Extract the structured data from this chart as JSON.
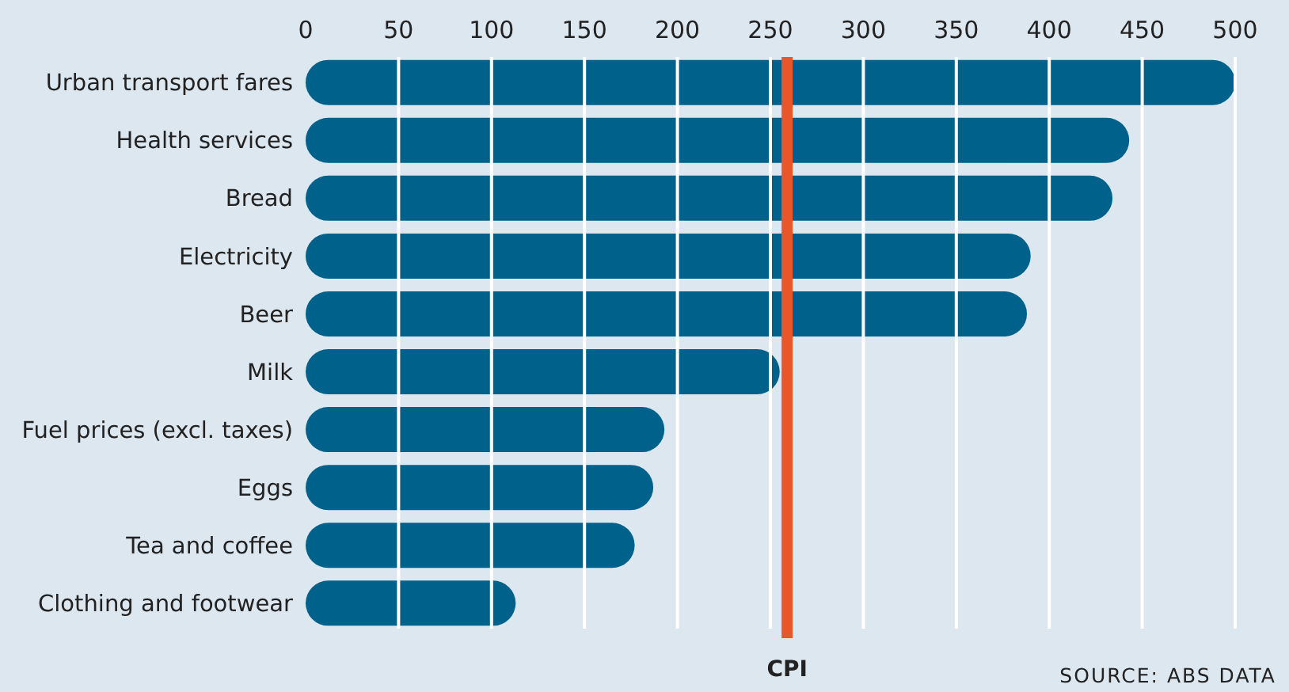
{
  "chart_data": {
    "type": "bar",
    "orientation": "horizontal",
    "categories": [
      "Urban transport fares",
      "Health services",
      "Bread",
      "Electricity",
      "Beer",
      "Milk",
      "Fuel prices (excl. taxes)",
      "Eggs",
      "Tea and coffee",
      "Clothing and footwear"
    ],
    "values": [
      500,
      443,
      434,
      390,
      388,
      255,
      193,
      187,
      177,
      113
    ],
    "color": "#00628b",
    "xlim": [
      0,
      500
    ],
    "xticks": [
      0,
      50,
      100,
      150,
      200,
      250,
      300,
      350,
      400,
      450,
      500
    ],
    "grid": "x",
    "ref_lines": [
      {
        "axis": "x",
        "value": 259,
        "label": "CPI",
        "color": "#e8562a"
      }
    ],
    "annotations": [
      "SOURCE: ABS DATA"
    ]
  }
}
